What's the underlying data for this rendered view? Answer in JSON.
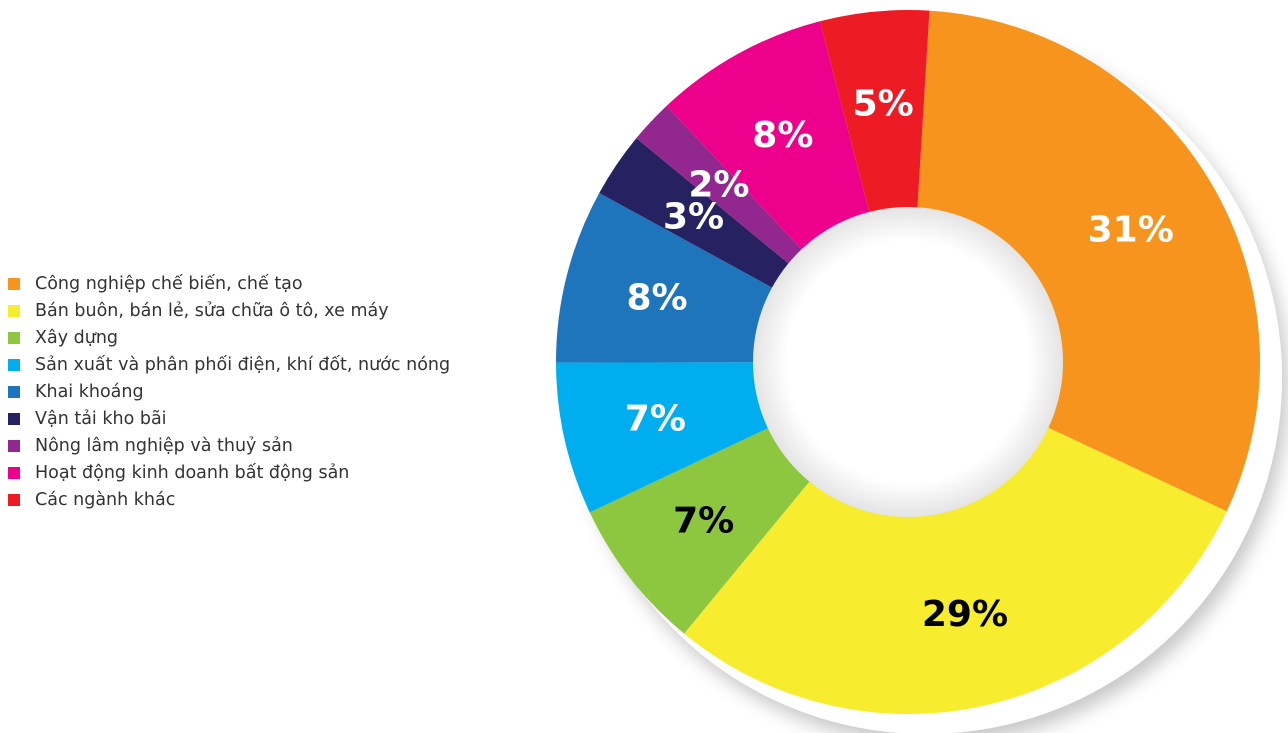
{
  "chart_data": {
    "type": "pie",
    "subtype": "donut",
    "legend_position": "left",
    "categories": [
      "Công nghiệp chế biến, chế tạo",
      "Bán buôn, bán lẻ, sửa chữa ô tô, xe máy",
      "Xây dựng",
      "Sản xuất và phân phối điện, khí đốt, nước nóng",
      "Khai khoáng",
      "Vận tải kho bãi",
      "Nông lâm nghiệp và thuỷ sản",
      "Hoạt động kinh doanh bất động sản",
      "Các ngành khác"
    ],
    "values": [
      31,
      29,
      7,
      7,
      8,
      3,
      2,
      8,
      5
    ],
    "labels": [
      "31%",
      "29%",
      "7%",
      "7%",
      "8%",
      "3%",
      "2%",
      "8%",
      "5%"
    ],
    "colors": [
      "#f7941d",
      "#f7ec2e",
      "#8dc63f",
      "#00aeef",
      "#1f75bb",
      "#262262",
      "#92278f",
      "#ec008c",
      "#ed1c24"
    ],
    "label_colors": [
      "#ffffff",
      "#000000",
      "#000000",
      "#ffffff",
      "#ffffff",
      "#ffffff",
      "#ffffff",
      "#ffffff",
      "#ffffff"
    ]
  }
}
